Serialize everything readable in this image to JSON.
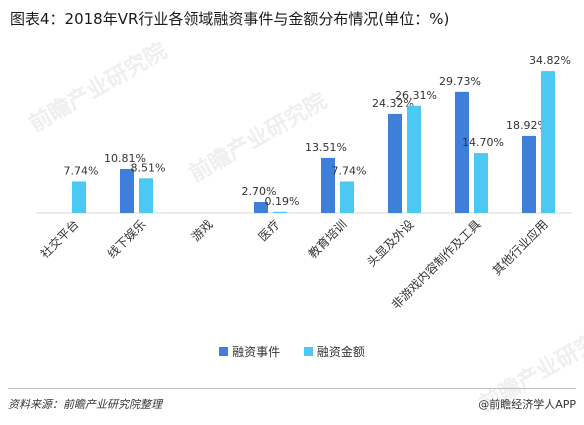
{
  "title": "图表4：2018年VR行业各领域融资事件与金额分布情况(单位：%)",
  "source": "资料来源：前瞻产业研究院整理",
  "brand": "@前瞻经济学人APP",
  "watermark_text": "前瞻产业研究院",
  "colors": {
    "events": "#3d7fd9",
    "amount": "#4cc8f4"
  },
  "chart_data": {
    "type": "bar",
    "categories": [
      "社交平台",
      "线下娱乐",
      "游戏",
      "医疗",
      "教育培训",
      "头显及外设",
      "非游戏内容制作及工具",
      "其他行业应用"
    ],
    "series": [
      {
        "name": "融资事件",
        "values": [
          null,
          10.81,
          null,
          2.7,
          13.51,
          24.32,
          29.73,
          18.92
        ]
      },
      {
        "name": "融资金额",
        "values": [
          7.74,
          8.51,
          null,
          0.19,
          7.74,
          26.31,
          14.7,
          34.82
        ]
      }
    ],
    "labels": [
      [
        "",
        "10.81%",
        "",
        "2.70%",
        "13.51%",
        "24.32%",
        "29.73%",
        "18.92%"
      ],
      [
        "7.74%",
        "8.51%",
        "",
        "0.19%",
        "7.74%",
        "26.31%",
        "14.70%",
        "34.82%"
      ]
    ],
    "ylim": [
      0,
      40
    ],
    "legend": "bottom-center",
    "grid": false
  }
}
